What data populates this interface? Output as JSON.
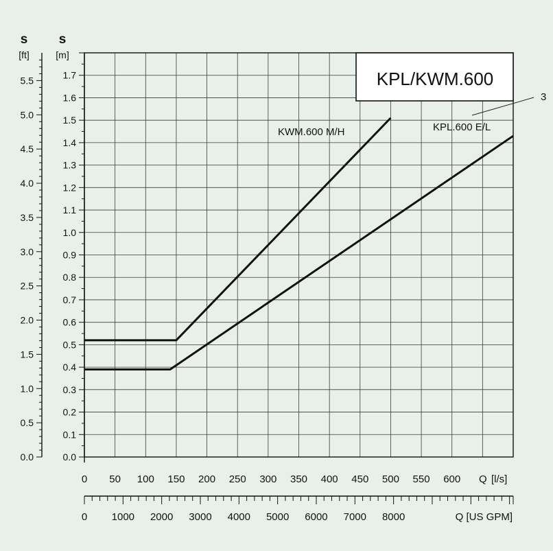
{
  "chart_data": {
    "type": "line",
    "title": "KPL/KWM.600",
    "x": {
      "label_unit": "[l/s]",
      "label_symbol": "Q",
      "ticks": [
        0,
        50,
        100,
        150,
        200,
        250,
        300,
        350,
        400,
        450,
        500,
        550,
        600
      ],
      "range": [
        0,
        700
      ]
    },
    "x2": {
      "label": "Q [US GPM]",
      "ticks": [
        0,
        1000,
        2000,
        3000,
        4000,
        5000,
        6000,
        7000,
        8000
      ]
    },
    "y_m": {
      "symbol": "s",
      "unit": "[m]",
      "ticks": [
        0.0,
        0.1,
        0.2,
        0.3,
        0.4,
        0.5,
        0.6,
        0.7,
        0.8,
        0.9,
        1.0,
        1.1,
        1.2,
        1.3,
        1.4,
        1.5,
        1.6,
        1.7
      ],
      "range": [
        0,
        1.8
      ]
    },
    "y_ft": {
      "symbol": "s",
      "unit": "[ft]",
      "ticks": [
        0.0,
        0.5,
        1.0,
        1.5,
        2.0,
        2.5,
        3.0,
        3.5,
        4.0,
        4.5,
        5.0,
        5.5
      ]
    },
    "grid": true,
    "series": [
      {
        "name": "KWM.600 M/H",
        "x": [
          0,
          150,
          500
        ],
        "y": [
          0.52,
          0.52,
          1.51
        ]
      },
      {
        "name": "KPL.600 E/L",
        "x": [
          0,
          140,
          700
        ],
        "y": [
          0.39,
          0.39,
          1.43
        ]
      }
    ],
    "annotations": [
      {
        "text": "3"
      }
    ]
  }
}
